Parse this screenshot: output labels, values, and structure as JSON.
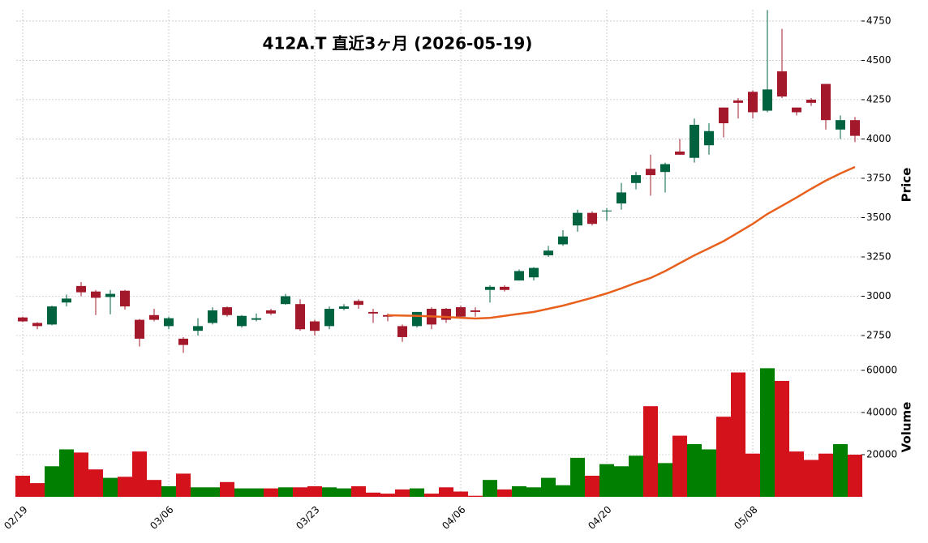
{
  "chart_data": {
    "type": "candlestick",
    "title": "412A.T 直近3ヶ月 (2026-05-19)",
    "ylabel": "Price",
    "y2label": "Volume",
    "categories": [
      "02/19",
      null,
      null,
      null,
      null,
      null,
      null,
      null,
      null,
      null,
      "03/06",
      null,
      null,
      null,
      null,
      null,
      null,
      null,
      null,
      null,
      "03/23",
      null,
      null,
      null,
      null,
      null,
      null,
      null,
      null,
      null,
      "04/06",
      null,
      null,
      null,
      null,
      null,
      null,
      null,
      null,
      null,
      "04/20",
      null,
      null,
      null,
      null,
      null,
      null,
      null,
      null,
      null,
      "05/08",
      null,
      null,
      null,
      null,
      null,
      null,
      null
    ],
    "open": [
      2865,
      2830,
      2820,
      2960,
      3065,
      3030,
      2995,
      3035,
      2850,
      2880,
      2810,
      2730,
      2780,
      2830,
      2930,
      2810,
      2850,
      2910,
      2950,
      2950,
      2840,
      2810,
      2920,
      2970,
      2900,
      2880,
      2810,
      2810,
      2920,
      2920,
      2930,
      2910,
      3040,
      3060,
      3100,
      3120,
      3260,
      3330,
      3450,
      3530,
      3540,
      3590,
      3720,
      3810,
      3790,
      3920,
      3880,
      3960,
      4200,
      4245,
      4300,
      4180,
      4430,
      4200,
      4250,
      4350,
      4060,
      4120
    ],
    "high": [
      2870,
      2835,
      2940,
      3010,
      3090,
      3040,
      3040,
      3040,
      2855,
      2920,
      2870,
      2740,
      2860,
      2930,
      2935,
      2880,
      2890,
      2920,
      3015,
      2980,
      2850,
      2935,
      2950,
      2980,
      2920,
      2890,
      2820,
      2900,
      2930,
      2925,
      2940,
      2930,
      3070,
      3070,
      3170,
      3185,
      3320,
      3420,
      3550,
      3540,
      3560,
      3720,
      3790,
      3900,
      3850,
      4000,
      4130,
      4100,
      4200,
      4260,
      4310,
      4820,
      4700,
      4200,
      4260,
      4350,
      4150,
      4140
    ],
    "low": [
      2835,
      2790,
      2815,
      2935,
      3000,
      2880,
      2885,
      2915,
      2680,
      2840,
      2790,
      2640,
      2750,
      2820,
      2870,
      2800,
      2840,
      2880,
      2945,
      2780,
      2750,
      2790,
      2910,
      2920,
      2830,
      2840,
      2710,
      2800,
      2790,
      2830,
      2860,
      2870,
      2960,
      3030,
      3100,
      3100,
      3250,
      3320,
      3410,
      3450,
      3480,
      3550,
      3680,
      3640,
      3660,
      3900,
      3850,
      3900,
      4010,
      4130,
      4130,
      4170,
      4260,
      4150,
      4210,
      4060,
      4000,
      3980
    ],
    "close": [
      2840,
      2810,
      2935,
      2985,
      3025,
      2990,
      3015,
      2935,
      2730,
      2850,
      2860,
      2690,
      2810,
      2910,
      2880,
      2875,
      2860,
      2890,
      3000,
      2790,
      2780,
      2920,
      2935,
      2945,
      2890,
      2870,
      2740,
      2900,
      2820,
      2850,
      2870,
      2900,
      3060,
      3040,
      3160,
      3180,
      3290,
      3380,
      3530,
      3460,
      3545,
      3660,
      3770,
      3770,
      3840,
      3900,
      4090,
      4050,
      4100,
      4230,
      4170,
      4315,
      4270,
      4170,
      4230,
      4120,
      4120,
      4020
    ],
    "volume": [
      10000,
      6500,
      14500,
      22500,
      21000,
      13000,
      9000,
      9500,
      21500,
      8000,
      5000,
      11000,
      4500,
      4500,
      7000,
      4000,
      4000,
      4000,
      4500,
      4500,
      5000,
      4500,
      4000,
      5000,
      2000,
      1500,
      3500,
      4000,
      1500,
      4500,
      2500,
      500,
      8000,
      3500,
      5000,
      4500,
      9000,
      5500,
      18500,
      10000,
      15500,
      14500,
      19500,
      43000,
      16000,
      29000,
      25000,
      22500,
      38000,
      59000,
      20500,
      61000,
      55000,
      21500,
      17500,
      20500,
      25000,
      20000
    ],
    "moving_average": [
      null,
      null,
      null,
      null,
      null,
      null,
      null,
      null,
      null,
      null,
      null,
      null,
      null,
      null,
      null,
      null,
      null,
      null,
      null,
      null,
      null,
      null,
      null,
      null,
      null,
      2879,
      2877,
      2875,
      2872,
      2868,
      2863,
      2858,
      2862,
      2875,
      2888,
      2900,
      2920,
      2940,
      2965,
      2990,
      3018,
      3050,
      3085,
      3116,
      3160,
      3210,
      3260,
      3305,
      3350,
      3405,
      3460,
      3523,
      3575,
      3628,
      3683,
      3735,
      3781,
      3822
    ],
    "up_color": "#006340",
    "down_color": "#a3192b",
    "volume_up_color": "#007f00",
    "volume_down_color": "#d4121c",
    "ma_color": "#e8601c",
    "ylim": [
      2616,
      4822
    ],
    "yticks": [
      2750,
      3000,
      3250,
      3500,
      3750,
      4000,
      4250,
      4500,
      4750
    ],
    "y2lim": [
      0,
      64600
    ],
    "y2ticks": [
      20000,
      40000,
      60000
    ],
    "grid": true
  }
}
